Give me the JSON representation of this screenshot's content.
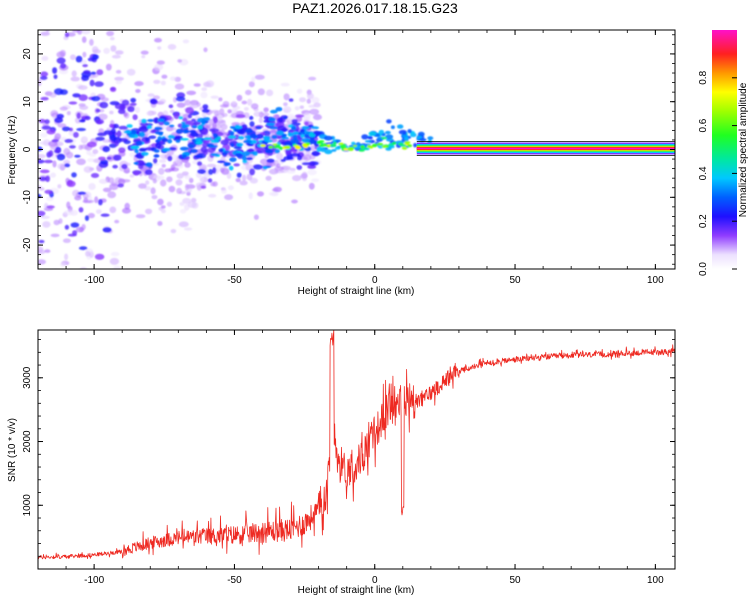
{
  "figure_title": "PAZ1.2026.017.18.15.G23",
  "colors": {
    "snr_line": "#ee2a22",
    "spectrum_line": "#e8104a",
    "frame": "#000000"
  },
  "chart_data": [
    {
      "type": "heatmap",
      "title": "PAZ1.2026.017.18.15.G23",
      "xlabel": "Height of straight line (km)",
      "ylabel": "Frequency (Hz)",
      "xlim": [
        -120,
        107
      ],
      "ylim": [
        -25,
        25
      ],
      "xticks": [
        -100,
        -50,
        0,
        50,
        100
      ],
      "yticks": [
        -20,
        -10,
        0,
        10,
        20
      ],
      "colorbar": {
        "label": "Normalized spectral amplitude",
        "range": [
          0,
          1
        ],
        "ticks": [
          "0.0",
          "0.2",
          "0.4",
          "0.6",
          "0.8"
        ]
      },
      "description_points": {
        "dominant_frequency_hz": 0.2,
        "coherent_from_km": -45,
        "strong_band_from_km": 15
      }
    },
    {
      "type": "line",
      "xlabel": "Height of straight line (km)",
      "ylabel": "SNR (10 * v/v)",
      "xlim": [
        -120,
        107
      ],
      "ylim": [
        0,
        3750
      ],
      "xticks": [
        -100,
        -50,
        0,
        50,
        100
      ],
      "yticks": [
        1000,
        2000,
        3000
      ],
      "series": [
        {
          "name": "SNR",
          "x": [
            -120,
            -110,
            -100,
            -90,
            -80,
            -70,
            -60,
            -50,
            -40,
            -30,
            -25,
            -20,
            -17,
            -15,
            -13,
            -10,
            -5,
            0,
            5,
            10,
            15,
            20,
            25,
            30,
            40,
            50,
            60,
            70,
            80,
            90,
            100,
            107
          ],
          "values": [
            180,
            190,
            220,
            270,
            400,
            480,
            500,
            520,
            560,
            600,
            700,
            900,
            1200,
            2400,
            1700,
            1500,
            1700,
            2100,
            2500,
            2600,
            2600,
            2750,
            2950,
            3100,
            3230,
            3280,
            3320,
            3350,
            3360,
            3380,
            3400,
            3410
          ]
        }
      ]
    }
  ]
}
